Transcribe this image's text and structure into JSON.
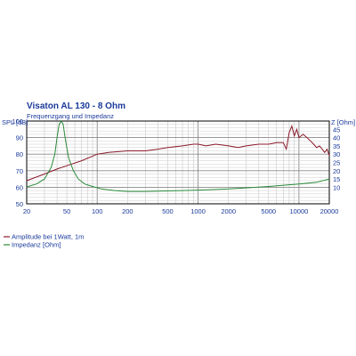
{
  "chart_data": {
    "type": "line",
    "title": "Visaton AL 130 - 8 Ohm",
    "subtitle": "Frequenzgang und Impedanz",
    "x_scale": "log",
    "xlim": [
      20,
      20000
    ],
    "x_ticks": [
      {
        "value": 20,
        "label": "20"
      },
      {
        "value": 50,
        "label": "50"
      },
      {
        "value": 100,
        "label": "100"
      },
      {
        "value": 200,
        "label": "200"
      },
      {
        "value": 500,
        "label": "500"
      },
      {
        "value": 1000,
        "label": "1000"
      },
      {
        "value": 2000,
        "label": "2000"
      },
      {
        "value": 5000,
        "label": "5000"
      },
      {
        "value": 10000,
        "label": "10000"
      },
      {
        "value": 20000,
        "label": "20000"
      }
    ],
    "y_left": {
      "label": "SPL [dB]",
      "lim": [
        50,
        100
      ],
      "ticks": [
        50,
        60,
        70,
        80,
        90,
        100
      ]
    },
    "y_right": {
      "label": "Z [Ohm]",
      "lim": [
        0,
        50
      ],
      "ticks": [
        10,
        15,
        20,
        25,
        30,
        35,
        40,
        45,
        50
      ]
    },
    "grid": true,
    "legend_position": "bottom-left",
    "series": [
      {
        "name": "Amplitude bei 1Watt, 1m",
        "axis": "left",
        "color": "#8b1a2a",
        "points": [
          [
            20,
            64
          ],
          [
            30,
            68
          ],
          [
            40,
            71
          ],
          [
            50,
            73
          ],
          [
            70,
            76
          ],
          [
            100,
            80
          ],
          [
            130,
            81
          ],
          [
            200,
            82
          ],
          [
            300,
            82
          ],
          [
            400,
            83
          ],
          [
            500,
            84
          ],
          [
            700,
            85
          ],
          [
            900,
            86
          ],
          [
            1000,
            86
          ],
          [
            1200,
            85
          ],
          [
            1500,
            86
          ],
          [
            2000,
            85
          ],
          [
            2500,
            84
          ],
          [
            3000,
            85
          ],
          [
            4000,
            86
          ],
          [
            5000,
            86
          ],
          [
            6000,
            87
          ],
          [
            7000,
            87
          ],
          [
            7500,
            83
          ],
          [
            8000,
            93
          ],
          [
            8500,
            97
          ],
          [
            9000,
            91
          ],
          [
            9500,
            95
          ],
          [
            10000,
            90
          ],
          [
            11000,
            92
          ],
          [
            12000,
            90
          ],
          [
            13000,
            88
          ],
          [
            14000,
            86
          ],
          [
            15000,
            84
          ],
          [
            16000,
            85
          ],
          [
            17000,
            83
          ],
          [
            18000,
            81
          ],
          [
            19000,
            83
          ],
          [
            20000,
            79
          ]
        ]
      },
      {
        "name": "Impedanz [Ohm]",
        "axis": "right",
        "color": "#2a8a3a",
        "points": [
          [
            20,
            10.2
          ],
          [
            25,
            12
          ],
          [
            30,
            15
          ],
          [
            35,
            22
          ],
          [
            38,
            30
          ],
          [
            40,
            40
          ],
          [
            42,
            48
          ],
          [
            44,
            50
          ],
          [
            46,
            48
          ],
          [
            48,
            40
          ],
          [
            52,
            28
          ],
          [
            58,
            20
          ],
          [
            65,
            15
          ],
          [
            75,
            12
          ],
          [
            90,
            10.5
          ],
          [
            110,
            9
          ],
          [
            150,
            8
          ],
          [
            200,
            7.5
          ],
          [
            300,
            7.5
          ],
          [
            500,
            7.8
          ],
          [
            700,
            8
          ],
          [
            1000,
            8.3
          ],
          [
            2000,
            9
          ],
          [
            3000,
            9.6
          ],
          [
            5000,
            10.5
          ],
          [
            8000,
            11.5
          ],
          [
            10000,
            12
          ],
          [
            15000,
            13
          ],
          [
            20000,
            15
          ]
        ]
      }
    ]
  }
}
